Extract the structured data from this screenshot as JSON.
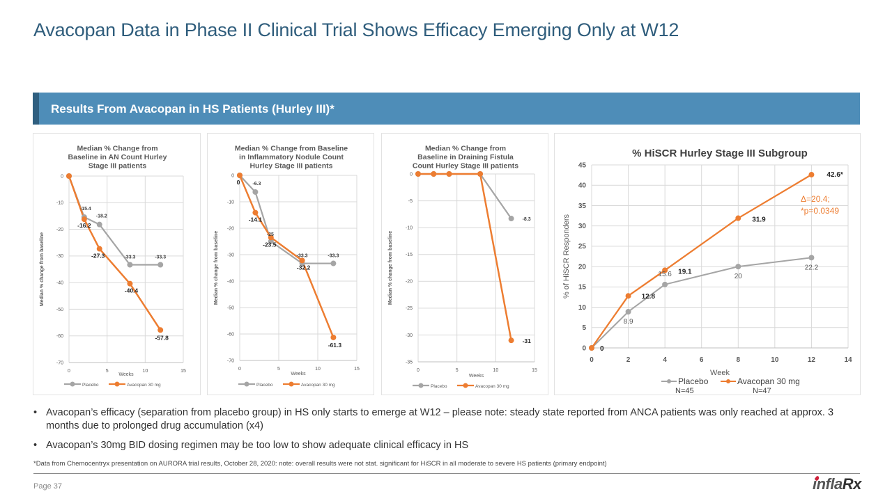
{
  "title": "Avacopan Data in Phase II Clinical Trial Shows Efficacy Emerging Only at W12",
  "section_header": "Results From Avacopan in HS Patients (Hurley III)*",
  "colors": {
    "title": "#2f5d7c",
    "section_bar": "#4e8db8",
    "section_accent": "#2f5f80",
    "placebo": "#a5a5a5",
    "avacopan": "#ed7d31",
    "annotation": "#ed7d31"
  },
  "chart_data": [
    {
      "type": "line",
      "title": "Median % Change from Baseline in AN Count Hurley Stage III patients",
      "title_lines": [
        "Median % Change from",
        "Baseline in AN Count Hurley",
        "Stage III patients"
      ],
      "xlabel": "Weeks",
      "ylabel": "Median % change from baseline",
      "xlim": [
        0,
        15
      ],
      "ylim": [
        -70,
        0
      ],
      "xticks": [
        0,
        5,
        10,
        15
      ],
      "yticks": [
        0,
        -10,
        -20,
        -30,
        -40,
        -50,
        -60,
        -70
      ],
      "grid": true,
      "legend": "bottom",
      "series": [
        {
          "name": "Placebo",
          "x": [
            0,
            2,
            4,
            8,
            12
          ],
          "values": [
            0,
            -15.4,
            -18.2,
            -33.3,
            -33.3
          ],
          "labels": [
            "",
            "-15.4",
            "-18.2",
            "-33.3",
            "-33.3"
          ]
        },
        {
          "name": "Avacopan 30 mg",
          "x": [
            0,
            2,
            4,
            8,
            12
          ],
          "values": [
            0,
            -16.2,
            -27.3,
            -40.4,
            -57.8
          ],
          "labels": [
            "",
            "-16.2",
            "-27.3",
            "-40.4",
            "-57.8"
          ]
        }
      ]
    },
    {
      "type": "line",
      "title": "Median % Change from Baseline in Inflammatory Nodule Count Hurley Stage III patients",
      "title_lines": [
        "Median % Change from Baseline",
        "in Inflammatory Nodule Count",
        "Hurley Stage III patients"
      ],
      "xlabel": "Weeks",
      "ylabel": "Median % change from baseline",
      "xlim": [
        0,
        15
      ],
      "ylim": [
        -70,
        0
      ],
      "xticks": [
        0,
        5,
        10,
        15
      ],
      "yticks": [
        0,
        -10,
        -20,
        -30,
        -40,
        -50,
        -60,
        -70
      ],
      "grid": true,
      "legend": "bottom",
      "series": [
        {
          "name": "Placebo",
          "x": [
            0,
            2,
            4,
            8,
            12
          ],
          "values": [
            0,
            -6.3,
            -25,
            -33.3,
            -33.3
          ],
          "labels": [
            "",
            "-6.3",
            "-25",
            "-33.3",
            "-33.3"
          ]
        },
        {
          "name": "Avacopan 30 mg",
          "x": [
            0,
            2,
            4,
            8,
            12
          ],
          "values": [
            0,
            -14.1,
            -23.5,
            -32.2,
            -61.3
          ],
          "labels": [
            "0",
            "-14.1",
            "-23.5",
            "-32.2",
            "-61.3"
          ]
        }
      ]
    },
    {
      "type": "line",
      "title": "Median % Change from Baseline in Draining Fistula Count Hurley Stage III patients",
      "title_lines": [
        "Median % Change from",
        "Baseline in Draining Fistula",
        "Count Hurley Stage III patients"
      ],
      "xlabel": "Weeks",
      "ylabel": "Median % change from baseline",
      "xlim": [
        0,
        15
      ],
      "ylim": [
        -35,
        0
      ],
      "xticks": [
        0,
        5,
        10,
        15
      ],
      "yticks": [
        0,
        -5,
        -10,
        -15,
        -20,
        -25,
        -30,
        -35
      ],
      "grid": true,
      "legend": "bottom",
      "series": [
        {
          "name": "Placebo",
          "x": [
            0,
            2,
            4,
            8,
            12
          ],
          "values": [
            0,
            0,
            0,
            0,
            -8.3
          ],
          "labels": [
            "",
            "",
            "",
            "",
            "-8.3"
          ]
        },
        {
          "name": "Avacopan 30 mg",
          "x": [
            0,
            2,
            4,
            8,
            12
          ],
          "values": [
            0,
            0,
            0,
            0,
            -31
          ],
          "labels": [
            "",
            "",
            "",
            "",
            "-31"
          ]
        }
      ]
    },
    {
      "type": "line",
      "title": "% HiSCR Hurley Stage III Subgroup",
      "title_lines": [
        "% HiSCR Hurley Stage III Subgroup"
      ],
      "xlabel": "Week",
      "ylabel": "% of HiSCR Responders",
      "xlim": [
        0,
        14
      ],
      "ylim": [
        0,
        45
      ],
      "xticks": [
        0,
        2,
        4,
        6,
        8,
        10,
        12,
        14
      ],
      "yticks": [
        0,
        5,
        10,
        15,
        20,
        25,
        30,
        35,
        40,
        45
      ],
      "grid": true,
      "legend": "bottom",
      "annotation": [
        "Δ=20.4;",
        "*p=0.0349"
      ],
      "series": [
        {
          "name": "Placebo",
          "n": "N=45",
          "x": [
            0,
            2,
            4,
            8,
            12
          ],
          "values": [
            0,
            8.9,
            15.6,
            20,
            22.2
          ],
          "labels": [
            "",
            "8.9",
            "15.6",
            "20",
            "22.2"
          ]
        },
        {
          "name": "Avacopan 30 mg",
          "n": "N=47",
          "x": [
            0,
            2,
            4,
            8,
            12
          ],
          "values": [
            0,
            12.8,
            19.1,
            31.9,
            42.6
          ],
          "labels": [
            "0",
            "12.8",
            "19.1",
            "31.9",
            "42.6*"
          ]
        }
      ]
    }
  ],
  "bullets": [
    "Avacopan’s efficacy (separation from placebo group) in HS only starts to emerge at W12 – please note: steady state reported from ANCA patients was only reached at approx. 3 months due to prolonged drug accumulation (x4)",
    "Avacopan’s 30mg BID dosing regimen may be too low to show adequate clinical efficacy in HS"
  ],
  "bullet_symbol": "•",
  "footnote": "*Data from Chemocentryx presentation on AURORA trial results, October 28, 2020: note: overall results were not stat. significant for HiSCR in all moderate to severe HS patients (primary endpoint)",
  "page_number": "Page 37",
  "logo": {
    "text_main": "infla",
    "text_rx": "Rx"
  }
}
